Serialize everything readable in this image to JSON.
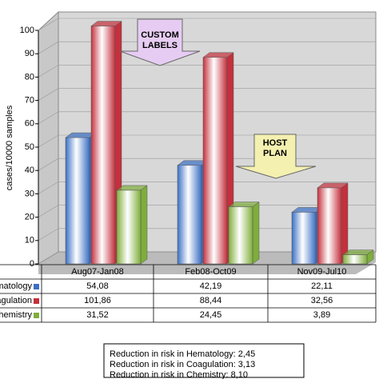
{
  "chart_data": {
    "type": "bar3d",
    "y_label": "cases/10000 samples",
    "categories": [
      "Aug07-Jan08",
      "Feb08-Oct09",
      "Nov09-Jul10"
    ],
    "series": [
      {
        "name": "Hematology",
        "color": "#3b6fc4",
        "values": [
          54.08,
          42.19,
          22.11
        ],
        "value_labels": [
          "54,08",
          "42,19",
          "22,11"
        ]
      },
      {
        "name": "Coagulation",
        "color": "#c4303c",
        "values": [
          101.86,
          88.44,
          32.56
        ],
        "value_labels": [
          "101,86",
          "88,44",
          "32,56"
        ]
      },
      {
        "name": "Chemistry",
        "color": "#7fae3c",
        "values": [
          31.52,
          24.45,
          3.89
        ],
        "value_labels": [
          "31,52",
          "24,45",
          "3,89"
        ]
      }
    ],
    "ylim": [
      0,
      100
    ],
    "yticks": [
      0,
      10,
      20,
      30,
      40,
      50,
      60,
      70,
      80,
      90,
      100
    ],
    "grid": true,
    "annotations": [
      [
        "CUSTOM",
        "LABELS"
      ],
      [
        "HOST",
        "PLAN"
      ]
    ],
    "notes": [
      "Reduction in risk in Hematology: 2,45",
      "Reduction in risk in Coagulation: 3,13",
      "Reduction in risk in Chemistry: 8,10"
    ]
  }
}
